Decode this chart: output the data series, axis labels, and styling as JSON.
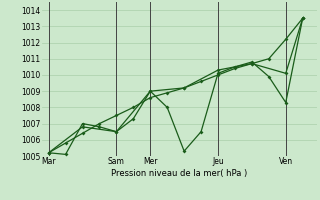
{
  "xlabel": "Pression niveau de la mer( hPa )",
  "ylim": [
    1005,
    1014.5
  ],
  "bg_color": "#cce8cc",
  "grid_color": "#aacfaa",
  "line_color": "#1a5c1a",
  "vline_color": "#444444",
  "x_day_labels": [
    "Mar",
    "Sam",
    "Mer",
    "Jeu",
    "Ven"
  ],
  "x_day_positions": [
    0,
    48,
    72,
    120,
    168
  ],
  "x_vline_positions": [
    0,
    48,
    72,
    120,
    168
  ],
  "xlim": [
    -5,
    190
  ],
  "series_smooth_x": [
    0,
    12,
    24,
    36,
    48,
    60,
    72,
    84,
    96,
    108,
    120,
    132,
    144,
    156,
    168,
    180
  ],
  "series_smooth_y": [
    1005.2,
    1005.8,
    1006.4,
    1007.0,
    1007.5,
    1008.0,
    1008.6,
    1008.9,
    1009.2,
    1009.6,
    1010.0,
    1010.4,
    1010.7,
    1011.0,
    1012.2,
    1013.5
  ],
  "series_jagged_x": [
    0,
    12,
    24,
    36,
    48,
    60,
    72,
    84,
    96,
    108,
    120,
    132,
    144,
    156,
    168,
    180
  ],
  "series_jagged_y": [
    1005.2,
    1005.1,
    1007.0,
    1006.8,
    1006.5,
    1007.3,
    1009.0,
    1008.0,
    1005.3,
    1006.5,
    1010.1,
    1010.5,
    1010.8,
    1009.9,
    1008.3,
    1013.5
  ],
  "series_med_x": [
    0,
    24,
    48,
    72,
    96,
    120,
    144,
    168,
    180
  ],
  "series_med_y": [
    1005.2,
    1006.8,
    1006.5,
    1009.0,
    1009.2,
    1010.3,
    1010.7,
    1010.1,
    1013.5
  ]
}
